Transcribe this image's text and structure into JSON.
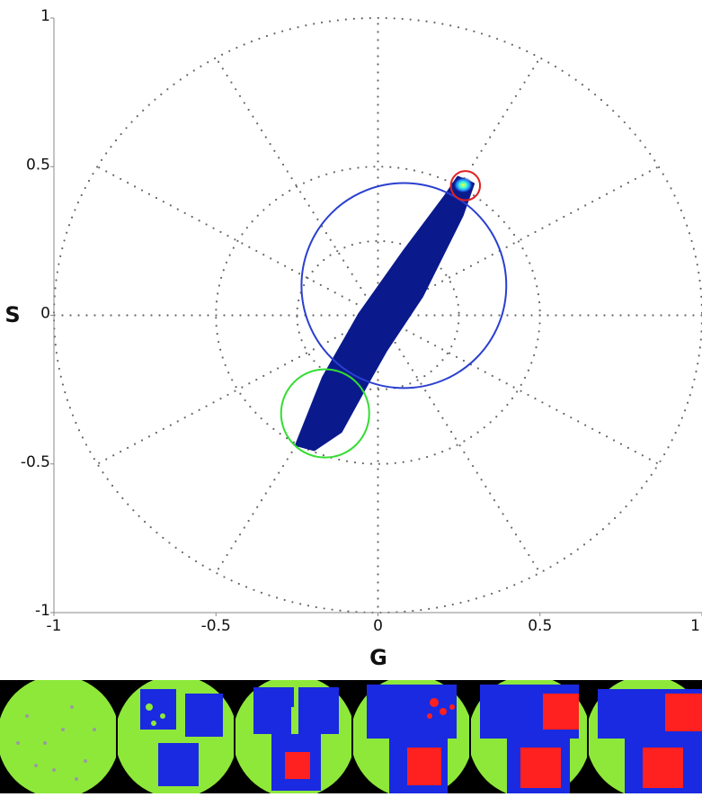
{
  "chart_data": {
    "type": "phasor",
    "x_label": "G",
    "y_label": "S",
    "xlim": [
      -1,
      1
    ],
    "ylim": [
      -1,
      1
    ],
    "xticks": [
      -1,
      -0.5,
      0,
      0.5,
      1
    ],
    "yticks": [
      -1,
      -0.5,
      0,
      0.5,
      1
    ],
    "polar_grid": {
      "radii": [
        0.25,
        0.5,
        1
      ],
      "spoke_angle_step": 30
    },
    "density_color": "#0a1a8c",
    "density_outline": {
      "x": [
        -0.252,
        -0.169,
        -0.058,
        0.08,
        0.205,
        0.247,
        0.294,
        0.26,
        0.136,
        0.025,
        -0.03,
        -0.114,
        -0.197
      ],
      "y": [
        -0.436,
        -0.209,
        0.003,
        0.215,
        0.397,
        0.464,
        0.442,
        0.336,
        0.064,
        -0.118,
        -0.224,
        -0.391,
        -0.452
      ]
    },
    "hotspot": {
      "g": 0.263,
      "s": 0.438
    },
    "cursors": [
      {
        "color": "#2a3fd0",
        "g": 0.08,
        "s": 0.1,
        "radius": 0.316
      },
      {
        "color": "#33dd33",
        "g": -0.163,
        "s": -0.33,
        "radius": 0.136
      },
      {
        "color": "#e02020",
        "g": 0.27,
        "s": 0.436,
        "radius": 0.045
      }
    ]
  }
}
